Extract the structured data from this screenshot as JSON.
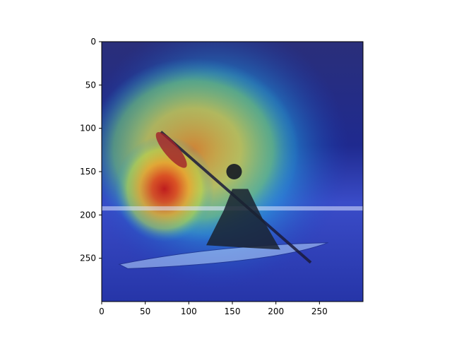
{
  "chart_data": {
    "type": "heatmap",
    "title": "",
    "xlabel": "",
    "ylabel": "",
    "xlim": [
      0,
      300
    ],
    "ylim": [
      300,
      0
    ],
    "x_ticks": [
      0,
      50,
      100,
      150,
      200,
      250
    ],
    "y_ticks": [
      0,
      50,
      100,
      150,
      200,
      250
    ],
    "x_tick_labels": [
      "0",
      "50",
      "100",
      "150",
      "200",
      "250"
    ],
    "y_tick_labels": [
      "0",
      "50",
      "100",
      "150",
      "200",
      "250"
    ],
    "colormap": "jet",
    "grid": false,
    "background_image": "photo of a person paddling a kayak on water",
    "attention_peak": {
      "x": 72,
      "y": 170
    },
    "attention_region": {
      "x_range": [
        20,
        260
      ],
      "y_range": [
        20,
        270
      ]
    },
    "colors": {
      "low": "#0b1f9e",
      "mid_low": "#1fa9d6",
      "mid": "#9fe05a",
      "mid_high": "#f4c73a",
      "high": "#d81f1f"
    }
  }
}
